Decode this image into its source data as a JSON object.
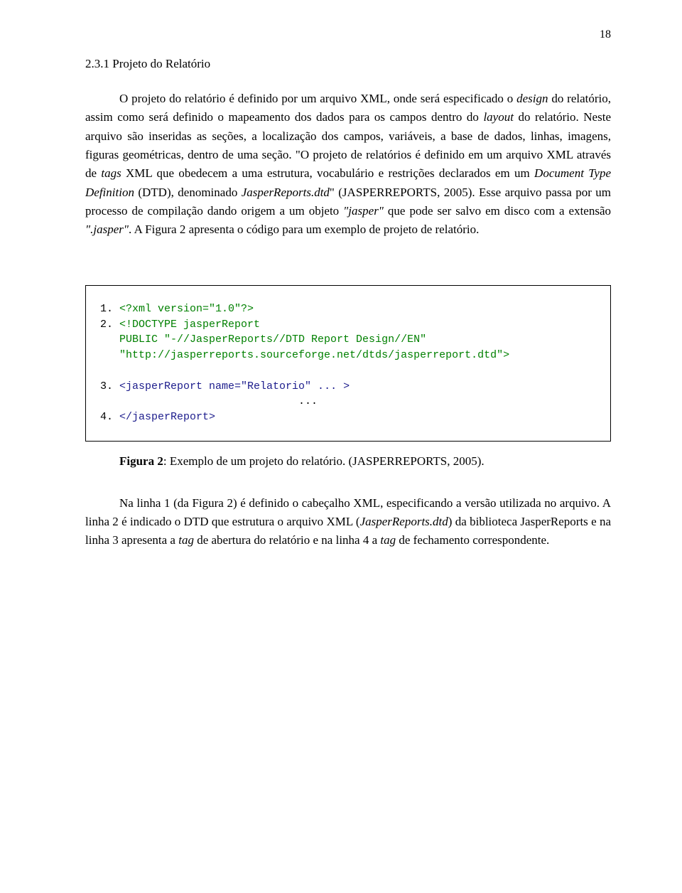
{
  "page_number": "18",
  "heading": "2.3.1 Projeto do Relatório",
  "paragraph_parts": {
    "p1_a": "O projeto do relatório é definido por um arquivo XML, onde será especificado o ",
    "p1_design": "design",
    "p1_b": " do relatório, assim como será definido o mapeamento dos dados para os campos dentro do ",
    "p1_layout": "layout",
    "p1_c": " do relatório. Neste arquivo são inseridas as seções, a localização dos campos, variáveis, a base de dados, linhas, imagens, figuras geométricas, dentro de uma seção. \"O projeto de relatórios é definido em um arquivo XML através de ",
    "p1_tags": "tags",
    "p1_d": " XML que obedecem a uma estrutura, vocabulário e restrições declarados em um ",
    "p1_dtd": "Document Type Definition",
    "p1_e": " (DTD), denominado ",
    "p1_jrdtd": "JasperReports.dtd",
    "p1_f": "\" (JASPERREPORTS, 2005). Esse arquivo passa por um processo de compilação dando origem a um objeto ",
    "p1_jasper1": "\"jasper\"",
    "p1_g": " que pode ser salvo em disco com a extensão ",
    "p1_jasper2": "\".jasper\"",
    "p1_h": ". A Figura 2 apresenta o código para um exemplo de projeto de relatório."
  },
  "code": {
    "line1_num": "1. ",
    "line1_text": "<?xml version=\"1.0\"?>",
    "line2_num": "2. ",
    "line2_a": "<!DOCTYPE jasperReport",
    "line2_b": "   PUBLIC \"-//JasperReports//DTD Report Design//EN\"",
    "line2_c": "   \"http://jasperreports.sourceforge.net/dtds/jasperreport.dtd\">",
    "line3_num": "3. ",
    "line3_text": "<jasperReport name=\"Relatorio\" ... >",
    "dots": "                               ...",
    "line4_num": "4. ",
    "line4_text": "</jasperReport>"
  },
  "caption": {
    "bold": "Figura 2",
    "rest": ": Exemplo de um projeto do relatório. (JASPERREPORTS, 2005)."
  },
  "paragraph2_parts": {
    "a": "Na linha 1 (da Figura 2) é definido o cabeçalho XML, especificando a versão utilizada no arquivo. A linha 2 é indicado o DTD que estrutura o arquivo XML (",
    "jr": "JasperReports.dtd",
    "b": ") da biblioteca JasperReports e na linha 3 apresenta a ",
    "tag1": "tag",
    "c": " de abertura do relatório e na linha 4 a ",
    "tag2": "tag",
    "d": " de fechamento correspondente."
  }
}
